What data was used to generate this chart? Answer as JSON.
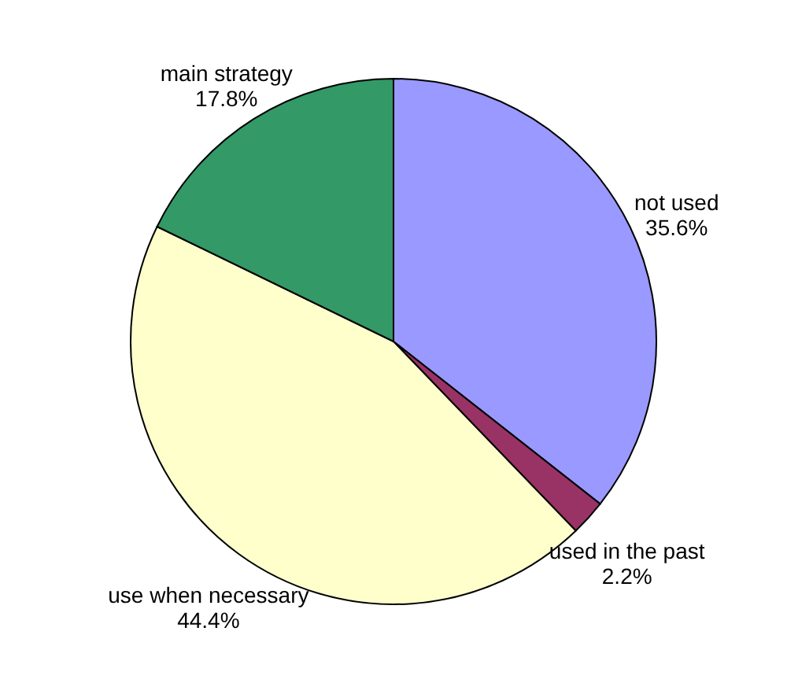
{
  "chart_data": {
    "type": "pie",
    "categories": [
      "not used",
      "used in the past",
      "use when necessary",
      "main strategy"
    ],
    "values": [
      35.6,
      2.2,
      44.4,
      17.8
    ],
    "colors": [
      "#9999ff",
      "#993366",
      "#ffffcc",
      "#339966"
    ],
    "value_labels": [
      "35.6%",
      "2.2%",
      "44.4%",
      "17.8%"
    ]
  }
}
